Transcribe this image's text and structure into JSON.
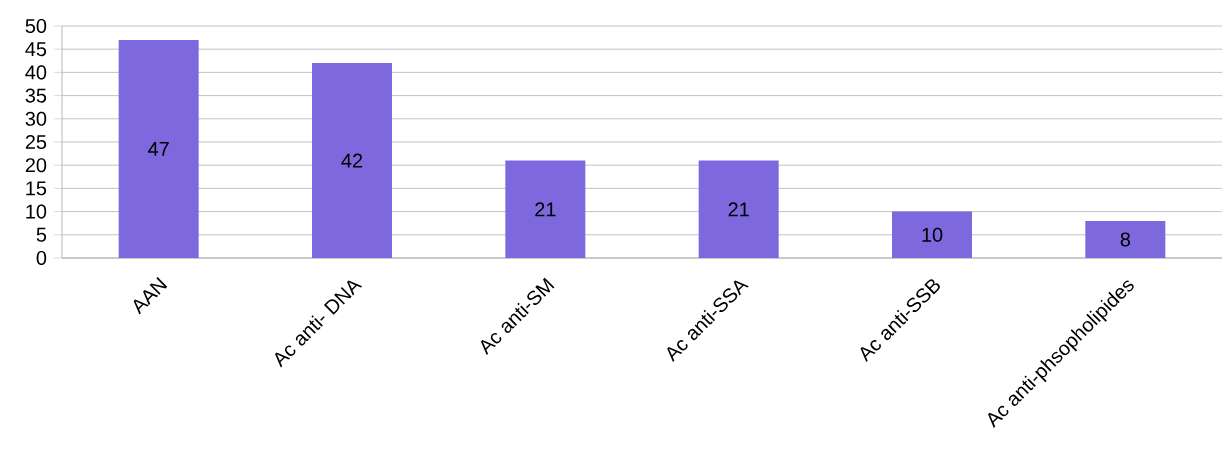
{
  "chart_data": {
    "type": "bar",
    "categories": [
      "AAN",
      "Ac anti- DNA",
      "Ac anti-SM",
      "Ac anti-SSA",
      "Ac anti-SSB",
      "Ac anti-phsopholipides"
    ],
    "values": [
      47,
      42,
      21,
      21,
      10,
      8
    ],
    "color": "#7d68de",
    "ylim": [
      0,
      50
    ],
    "yticks": [
      0,
      5,
      10,
      15,
      20,
      25,
      30,
      35,
      40,
      45,
      50
    ],
    "grid": "y",
    "data_labels": true
  }
}
